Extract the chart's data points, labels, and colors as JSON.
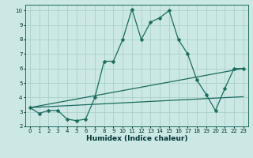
{
  "xlabel": "Humidex (Indice chaleur)",
  "xlim": [
    -0.5,
    23.5
  ],
  "ylim": [
    2,
    10.4
  ],
  "xtick_labels": [
    "0",
    "1",
    "2",
    "3",
    "4",
    "5",
    "6",
    "7",
    "8",
    "9",
    "10",
    "11",
    "12",
    "13",
    "14",
    "15",
    "16",
    "17",
    "18",
    "19",
    "20",
    "21",
    "22",
    "23"
  ],
  "ytick_labels": [
    "2",
    "3",
    "4",
    "5",
    "6",
    "7",
    "8",
    "9",
    "10"
  ],
  "background_color": "#cce8e4",
  "grid_color": "#aacfcb",
  "line_color": "#1a6b5e",
  "curve1_x": [
    0,
    1,
    2,
    3,
    4,
    5,
    6,
    7,
    8,
    9,
    10,
    11,
    12,
    13,
    14,
    15,
    16,
    17,
    18,
    19,
    20,
    21,
    22,
    23
  ],
  "curve1_y": [
    3.3,
    2.9,
    3.1,
    3.1,
    2.5,
    2.4,
    2.5,
    4.0,
    6.5,
    6.5,
    8.0,
    10.1,
    8.0,
    9.2,
    9.5,
    10.0,
    8.0,
    7.0,
    5.2,
    4.2,
    3.1,
    4.6,
    6.0,
    6.0
  ],
  "curve2_x": [
    0,
    23
  ],
  "curve2_y": [
    3.3,
    4.05
  ],
  "curve3_x": [
    0,
    23
  ],
  "curve3_y": [
    3.3,
    6.0
  ],
  "markersize": 2.5,
  "linewidth": 0.9,
  "tick_fontsize": 5.0,
  "xlabel_fontsize": 6.5
}
